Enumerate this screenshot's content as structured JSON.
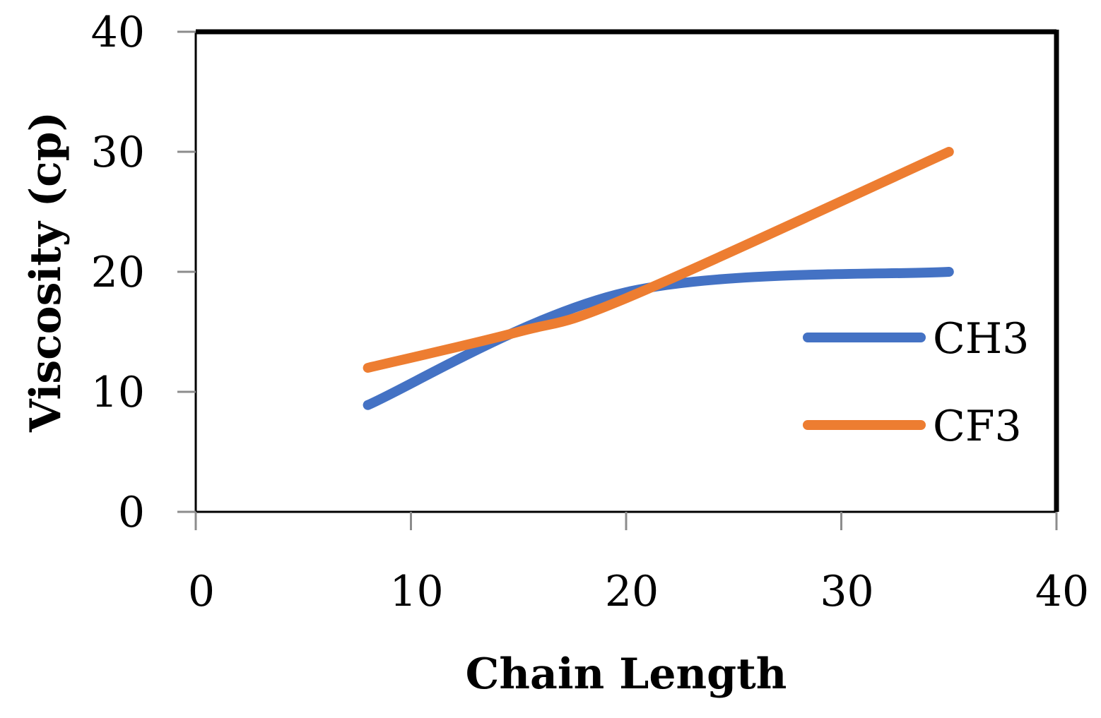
{
  "chart_data": {
    "type": "line",
    "title": "",
    "xlabel": "Chain Length",
    "ylabel": "Viscosity (cp)",
    "xlim": [
      0,
      40
    ],
    "ylim": [
      0,
      40
    ],
    "xticks": [
      0,
      10,
      20,
      30,
      40
    ],
    "yticks": [
      0,
      10,
      20,
      30,
      40
    ],
    "xtick_labels": [
      "0",
      "10",
      "20",
      "30",
      "40"
    ],
    "ytick_labels": [
      "0",
      "10",
      "20",
      "30",
      "40"
    ],
    "grid": false,
    "legend": "right",
    "series": [
      {
        "name": "CH3",
        "color": "#4472C4",
        "x": [
          8,
          20,
          35
        ],
        "y": [
          8.9,
          18.3,
          20
        ]
      },
      {
        "name": "CF3",
        "color": "#ED7D31",
        "x": [
          8,
          15,
          20,
          35
        ],
        "y": [
          12,
          15,
          17.8,
          30
        ]
      }
    ]
  }
}
